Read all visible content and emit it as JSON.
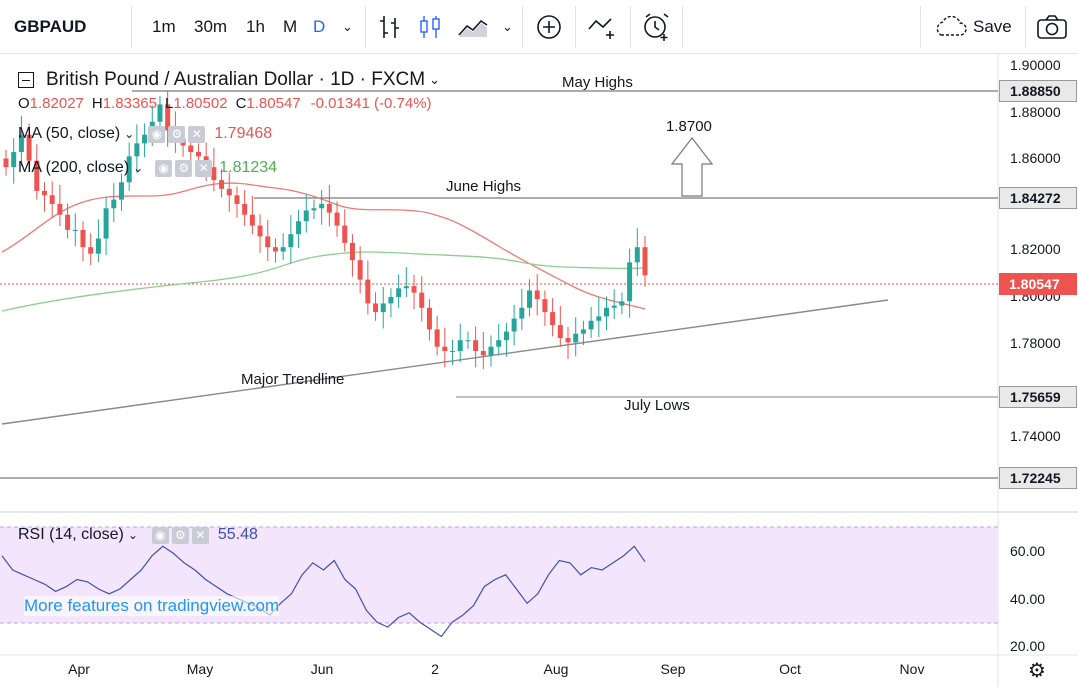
{
  "toolbar": {
    "symbol": "GBPAUD",
    "intervals": [
      "1m",
      "30m",
      "1h",
      "M",
      "D"
    ],
    "active_interval": "D",
    "save_label": "Save",
    "icons": [
      "interval-dropdown-icon",
      "bars-icon",
      "candles-icon",
      "area-chart-icon",
      "chart-type-dropdown-icon",
      "add-indicator-icon",
      "compare-icon",
      "alert-icon",
      "cloud-icon",
      "camera-icon"
    ]
  },
  "legend": {
    "title": "British Pound / Australian Dollar · 1D · FXCM",
    "ohlc": {
      "o_label": "O",
      "o": "1.82027",
      "h_label": "H",
      "h": "1.83365",
      "l_label": "L",
      "l": "1.80502",
      "c_label": "C",
      "c": "1.80547",
      "change": "-0.01341 (-0.74%)"
    },
    "ma50": {
      "label": "MA (50, close)",
      "value": "1.79468",
      "color": "#e0585b"
    },
    "ma200": {
      "label": "MA (200, close)",
      "value": "1.81234",
      "color": "#4caf50"
    }
  },
  "price_axis": {
    "ticks": [
      "1.90000",
      "1.88000",
      "1.86000",
      "1.82000",
      "1.80000",
      "1.78000",
      "1.74000"
    ],
    "tags": [
      {
        "label": "1.88850",
        "kind": "level"
      },
      {
        "label": "1.84272",
        "kind": "level"
      },
      {
        "label": "1.80547",
        "kind": "last"
      },
      {
        "label": "1.75659",
        "kind": "level"
      },
      {
        "label": "1.72245",
        "kind": "level"
      }
    ]
  },
  "annotations": {
    "may_highs": "May Highs",
    "target": "1.8700",
    "june_highs": "June Highs",
    "major_trendline": "Major Trendline",
    "july_lows": "July Lows"
  },
  "rsi": {
    "label": "RSI (14, close)",
    "value": "55.48",
    "ticks": [
      "60.00",
      "40.00",
      "20.00"
    ],
    "line_color": "#3f51b5",
    "band_color": "#f3e5fb"
  },
  "x_axis": {
    "ticks": [
      "Apr",
      "May",
      "Jun",
      "2",
      "Aug",
      "Sep",
      "Oct",
      "Nov"
    ]
  },
  "watermark": "More features on tradingview.com",
  "colors": {
    "up": "#26a69a",
    "down": "#ef5350",
    "accent": "#2962ff"
  },
  "chart_data": {
    "type": "candlestick",
    "ylim": [
      1.715,
      1.905
    ],
    "closes_approx": [
      1.855,
      1.862,
      1.87,
      1.858,
      1.844,
      1.842,
      1.838,
      1.833,
      1.826,
      1.826,
      1.818,
      1.815,
      1.822,
      1.836,
      1.84,
      1.848,
      1.86,
      1.866,
      1.87,
      1.876,
      1.884,
      1.872,
      1.868,
      1.865,
      1.862,
      1.86,
      1.855,
      1.849,
      1.845,
      1.842,
      1.838,
      1.833,
      1.828,
      1.823,
      1.818,
      1.816,
      1.818,
      1.824,
      1.83,
      1.835,
      1.836,
      1.838,
      1.834,
      1.828,
      1.82,
      1.812,
      1.803,
      1.792,
      1.788,
      1.792,
      1.795,
      1.799,
      1.8,
      1.797,
      1.79,
      1.78,
      1.772,
      1.77,
      1.77,
      1.775,
      1.775,
      1.77,
      1.768,
      1.772,
      1.775,
      1.779,
      1.785,
      1.79,
      1.798,
      1.794,
      1.788,
      1.782,
      1.776,
      1.774,
      1.778,
      1.78,
      1.784,
      1.786,
      1.79,
      1.791,
      1.793,
      1.811,
      1.818,
      1.805
    ],
    "ma50_approx": [
      1.823,
      1.83,
      1.836,
      1.84,
      1.841,
      1.84,
      1.838,
      1.837,
      1.838,
      1.84,
      1.842,
      1.845,
      1.846,
      1.844,
      1.842,
      1.841,
      1.84,
      1.838,
      1.835,
      1.83,
      1.822,
      1.814,
      1.808,
      1.803,
      1.8,
      1.797,
      1.794
    ],
    "ma200_approx": [
      1.794,
      1.796,
      1.799,
      1.802,
      1.805,
      1.808,
      1.81,
      1.812,
      1.813,
      1.813,
      1.812,
      1.812,
      1.812,
      1.811,
      1.811,
      1.811,
      1.81,
      1.81,
      1.81,
      1.81,
      1.812
    ],
    "rsi_approx": [
      58,
      52,
      50,
      48,
      46,
      43,
      45,
      48,
      47,
      44,
      42,
      44,
      48,
      52,
      58,
      62,
      59,
      55,
      52,
      48,
      45,
      42,
      40,
      38,
      36,
      33,
      38,
      42,
      50,
      55,
      52,
      56,
      48,
      44,
      35,
      30,
      28,
      32,
      34,
      30,
      27,
      24,
      30,
      33,
      37,
      45,
      48,
      50,
      44,
      38,
      42,
      50,
      56,
      55,
      50,
      53,
      52,
      55,
      58,
      62,
      55.48
    ],
    "levels": {
      "may_highs": 1.8885,
      "june_highs": 1.84272,
      "july_lows": 1.75659,
      "lower_level": 1.72245,
      "target": 1.87,
      "last": 1.80547
    }
  }
}
